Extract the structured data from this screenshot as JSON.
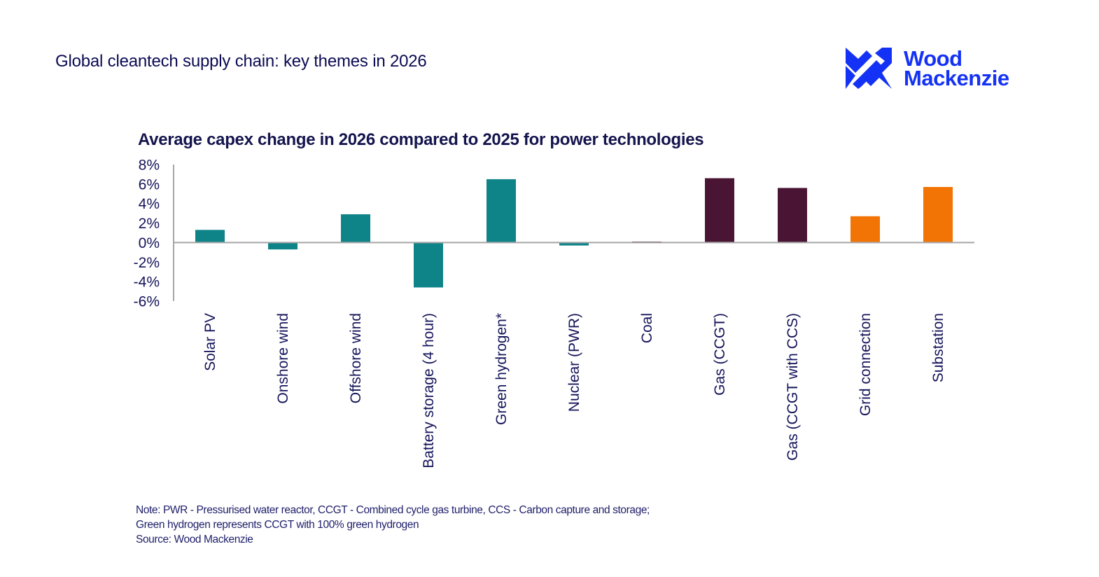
{
  "header": {
    "title": "Global cleantech supply chain: key themes in 2026",
    "logo": {
      "icon": "wood-mackenzie-logo-icon",
      "line1": "Wood",
      "line2": "Mackenzie",
      "color": "#1432f5"
    }
  },
  "chart_data": {
    "type": "bar",
    "title": "Average capex change in 2026 compared to 2025 for power technologies",
    "xlabel": "",
    "ylabel": "",
    "ylim": [
      -6,
      8
    ],
    "yticks": [
      8,
      6,
      4,
      2,
      0,
      -2,
      -4,
      -6
    ],
    "ytick_labels": [
      "8%",
      "6%",
      "4%",
      "2%",
      "0%",
      "-2%",
      "-4%",
      "-6%"
    ],
    "grid": false,
    "legend": "none",
    "unit": "%",
    "categories": [
      "Solar PV",
      "Onshore wind",
      "Offshore wind",
      "Battery storage (4 hour)",
      "Green hydrogen*",
      "Nuclear (PWR)",
      "Coal",
      "Gas (CCGT)",
      "Gas (CCGT with CCS)",
      "Grid connection",
      "Substation"
    ],
    "values": [
      1.3,
      -0.7,
      2.9,
      -4.6,
      6.5,
      -0.3,
      0.1,
      6.6,
      5.6,
      2.7,
      5.7
    ],
    "bar_colors": [
      "#0e8388",
      "#0e8388",
      "#0e8388",
      "#0e8388",
      "#0e8388",
      "#0e8388",
      "#4a1535",
      "#4a1535",
      "#4a1535",
      "#f27405",
      "#f27405"
    ],
    "axis_color": "#a6a6a6"
  },
  "notes": {
    "line1": "Note: PWR - Pressurised water reactor, CCGT - Combined cycle gas turbine, CCS - Carbon capture and storage;",
    "line2": "Green hydrogen represents  CCGT with 100% green hydrogen",
    "source": "Source: Wood Mackenzie"
  }
}
